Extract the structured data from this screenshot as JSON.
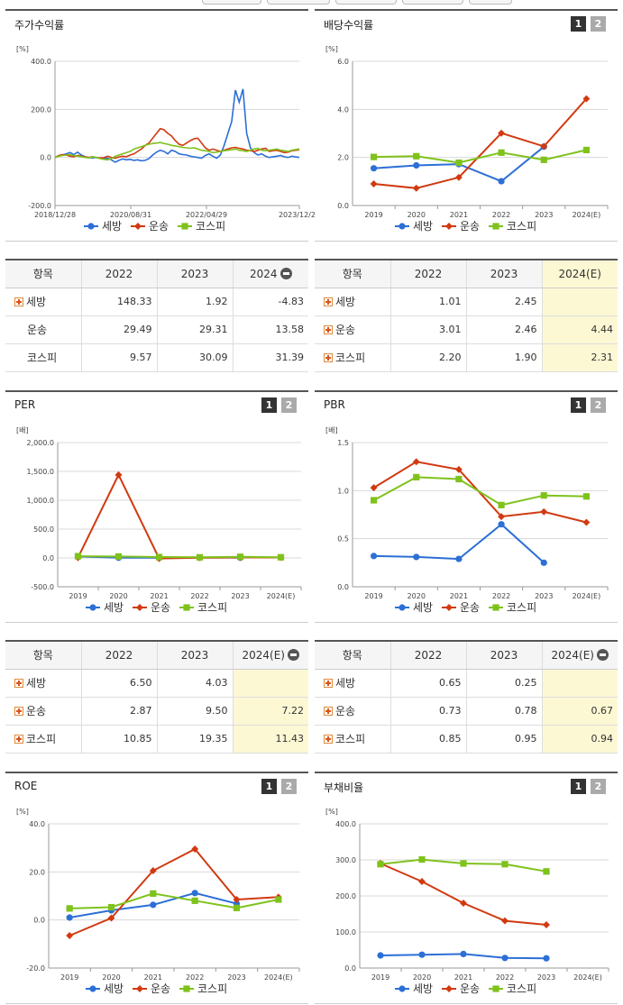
{
  "colors": {
    "semang": "#2c6fd6",
    "unsong": "#d13a11",
    "kospi": "#7fc21c"
  },
  "legend": [
    "세방",
    "운송",
    "코스피"
  ],
  "page": {
    "tables": [
      {
        "headers": [
          "항목",
          "2022",
          "2023",
          "2024"
        ],
        "rows": [
          {
            "name": "세방",
            "values": [
              "148.33",
              "1.92",
              "-4.83"
            ],
            "plus": true
          },
          {
            "name": "운송",
            "values": [
              "29.49",
              "29.31",
              "13.58"
            ],
            "plus": false
          },
          {
            "name": "코스피",
            "values": [
              "9.57",
              "30.09",
              "31.39"
            ],
            "plus": false
          }
        ]
      },
      {
        "headers": [
          "항목",
          "2022",
          "2023",
          "2024(E)"
        ],
        "rows": [
          {
            "name": "세방",
            "values": [
              "1.01",
              "2.45",
              ""
            ],
            "plus": true
          },
          {
            "name": "운송",
            "values": [
              "3.01",
              "2.46",
              "4.44"
            ],
            "plus": true
          },
          {
            "name": "코스피",
            "values": [
              "2.20",
              "1.90",
              "2.31"
            ],
            "plus": true
          }
        ]
      },
      {
        "headers": [
          "항목",
          "2022",
          "2023",
          "2024(E)"
        ],
        "rows": [
          {
            "name": "세방",
            "values": [
              "6.50",
              "4.03",
              ""
            ],
            "plus": true
          },
          {
            "name": "운송",
            "values": [
              "2.87",
              "9.50",
              "7.22"
            ],
            "plus": true
          },
          {
            "name": "코스피",
            "values": [
              "10.85",
              "19.35",
              "11.43"
            ],
            "plus": true
          }
        ]
      },
      {
        "headers": [
          "항목",
          "2022",
          "2023",
          "2024(E)"
        ],
        "rows": [
          {
            "name": "세방",
            "values": [
              "0.65",
              "0.25",
              ""
            ],
            "plus": true
          },
          {
            "name": "운송",
            "values": [
              "0.73",
              "0.78",
              "0.67"
            ],
            "plus": true
          },
          {
            "name": "코스피",
            "values": [
              "0.85",
              "0.95",
              "0.94"
            ],
            "plus": true
          }
        ]
      }
    ]
  },
  "chart_data": [
    {
      "type": "line",
      "title": "주가수익률",
      "unit": "[%]",
      "ylim": [
        -200,
        400
      ],
      "yticks": [
        "400.0",
        "200.0",
        "0.0",
        "-200.0"
      ],
      "ytick_values": [
        400,
        200,
        0,
        -200
      ],
      "x_tick_labels": [
        "2018/12/28",
        "2020/08/31",
        "2022/04/29",
        "2023/12/28"
      ],
      "x_tick_values": [
        0,
        0.31,
        0.62,
        1.0
      ],
      "badges": [],
      "series": [
        {
          "name": "세방",
          "key": "semang",
          "values": [
            0,
            5,
            10,
            15,
            20,
            12,
            22,
            10,
            3,
            0,
            -2,
            0,
            -3,
            -5,
            -3,
            -10,
            -20,
            -12,
            -6,
            -10,
            -8,
            -12,
            -10,
            -14,
            -12,
            -5,
            10,
            22,
            30,
            25,
            15,
            30,
            25,
            15,
            12,
            10,
            5,
            2,
            0,
            -3,
            8,
            15,
            5,
            -3,
            10,
            50,
            100,
            150,
            280,
            230,
            285,
            100,
            40,
            20,
            10,
            15,
            5,
            0,
            3,
            5,
            8,
            3,
            0,
            5,
            2,
            0
          ]
        },
        {
          "name": "운송",
          "key": "unsong",
          "values": [
            0,
            8,
            12,
            10,
            5,
            3,
            8,
            5,
            2,
            0,
            3,
            0,
            -2,
            -1,
            5,
            0,
            -3,
            2,
            5,
            3,
            10,
            15,
            25,
            35,
            50,
            60,
            80,
            100,
            120,
            115,
            100,
            90,
            70,
            55,
            50,
            60,
            70,
            78,
            80,
            60,
            40,
            30,
            35,
            30,
            25,
            30,
            35,
            40,
            42,
            38,
            35,
            30,
            28,
            25,
            30,
            35,
            38,
            25,
            28,
            30,
            25,
            20,
            22,
            28,
            30,
            32
          ]
        },
        {
          "name": "코스피",
          "key": "kospi",
          "values": [
            0,
            5,
            8,
            10,
            12,
            8,
            5,
            3,
            0,
            -2,
            2,
            0,
            -5,
            -8,
            -10,
            -5,
            5,
            10,
            15,
            20,
            25,
            35,
            40,
            45,
            50,
            55,
            58,
            60,
            62,
            58,
            55,
            50,
            48,
            45,
            42,
            40,
            38,
            40,
            35,
            30,
            28,
            25,
            20,
            22,
            25,
            28,
            30,
            32,
            35,
            30,
            28,
            25,
            30,
            35,
            38,
            30,
            28,
            30,
            32,
            35,
            30,
            28,
            25,
            30,
            33,
            35
          ]
        }
      ]
    },
    {
      "type": "line",
      "title": "배당수익률",
      "unit": "[%]",
      "ylim": [
        0,
        6
      ],
      "yticks": [
        "6.0",
        "4.0",
        "2.0",
        "0.0"
      ],
      "ytick_values": [
        6,
        4,
        2,
        0
      ],
      "categories": [
        "2019",
        "2020",
        "2021",
        "2022",
        "2023",
        "2024(E)"
      ],
      "badges": [
        "1",
        "2"
      ],
      "series": [
        {
          "name": "세방",
          "key": "semang",
          "values": [
            1.55,
            1.67,
            1.72,
            1.01,
            2.45,
            null
          ]
        },
        {
          "name": "운송",
          "key": "unsong",
          "values": [
            0.9,
            0.72,
            1.17,
            3.01,
            2.46,
            4.44
          ]
        },
        {
          "name": "코스피",
          "key": "kospi",
          "values": [
            2.02,
            2.05,
            1.78,
            2.2,
            1.9,
            2.31
          ]
        }
      ]
    },
    {
      "type": "line",
      "title": "PER",
      "unit": "[배]",
      "ylim": [
        -500,
        2000
      ],
      "yticks": [
        "2,000.0",
        "1,500.0",
        "1,000.0",
        "500.0",
        "0.0",
        "-500.0"
      ],
      "ytick_values": [
        2000,
        1500,
        1000,
        500,
        0,
        -500
      ],
      "categories": [
        "2019",
        "2020",
        "2021",
        "2022",
        "2023",
        "2024(E)"
      ],
      "badges": [
        "1",
        "2"
      ],
      "series": [
        {
          "name": "세방",
          "key": "semang",
          "values": [
            25,
            4,
            3,
            6.5,
            4.03,
            null
          ]
        },
        {
          "name": "운송",
          "key": "unsong",
          "values": [
            5,
            1440,
            -10,
            2.87,
            9.5,
            7.22
          ]
        },
        {
          "name": "코스피",
          "key": "kospi",
          "values": [
            30,
            25,
            15,
            10.85,
            19.35,
            11.43
          ]
        }
      ]
    },
    {
      "type": "line",
      "title": "PBR",
      "unit": "[배]",
      "ylim": [
        0,
        1.5
      ],
      "yticks": [
        "1.5",
        "1.0",
        "0.5",
        "0.0"
      ],
      "ytick_values": [
        1.5,
        1.0,
        0.5,
        0
      ],
      "categories": [
        "2019",
        "2020",
        "2021",
        "2022",
        "2023",
        "2024(E)"
      ],
      "badges": [
        "1",
        "2"
      ],
      "series": [
        {
          "name": "세방",
          "key": "semang",
          "values": [
            0.32,
            0.31,
            0.29,
            0.65,
            0.25,
            null
          ]
        },
        {
          "name": "운송",
          "key": "unsong",
          "values": [
            1.03,
            1.3,
            1.22,
            0.73,
            0.78,
            0.67
          ]
        },
        {
          "name": "코스피",
          "key": "kospi",
          "values": [
            0.9,
            1.14,
            1.12,
            0.85,
            0.95,
            0.94
          ]
        }
      ]
    },
    {
      "type": "line",
      "title": "ROE",
      "unit": "[%]",
      "ylim": [
        -20,
        40
      ],
      "yticks": [
        "40.0",
        "20.0",
        "0.0",
        "-20.0"
      ],
      "ytick_values": [
        40,
        20,
        0,
        -20
      ],
      "categories": [
        "2019",
        "2020",
        "2021",
        "2022",
        "2023",
        "2024(E)"
      ],
      "badges": [
        "1",
        "2"
      ],
      "series": [
        {
          "name": "세방",
          "key": "semang",
          "values": [
            1.0,
            4.0,
            6.3,
            11.2,
            6.8,
            null
          ]
        },
        {
          "name": "운송",
          "key": "unsong",
          "values": [
            -6.5,
            0.8,
            20.5,
            29.5,
            8.5,
            9.5
          ]
        },
        {
          "name": "코스피",
          "key": "kospi",
          "values": [
            4.8,
            5.3,
            11.0,
            8.0,
            5.0,
            8.5
          ]
        }
      ]
    },
    {
      "type": "line",
      "title": "부채비율",
      "unit": "[%]",
      "ylim": [
        0,
        400
      ],
      "yticks": [
        "400.0",
        "300.0",
        "200.0",
        "100.0",
        "0.0"
      ],
      "ytick_values": [
        400,
        300,
        200,
        100,
        0
      ],
      "categories": [
        "2019",
        "2020",
        "2021",
        "2022",
        "2023",
        "2024(E)"
      ],
      "badges": [
        "1",
        "2"
      ],
      "series": [
        {
          "name": "세방",
          "key": "semang",
          "values": [
            35,
            37,
            39,
            28,
            27,
            null
          ]
        },
        {
          "name": "운송",
          "key": "unsong",
          "values": [
            290,
            240,
            180,
            131,
            120,
            null
          ]
        },
        {
          "name": "코스피",
          "key": "kospi",
          "values": [
            288,
            301,
            290,
            288,
            268,
            null
          ]
        }
      ]
    }
  ]
}
